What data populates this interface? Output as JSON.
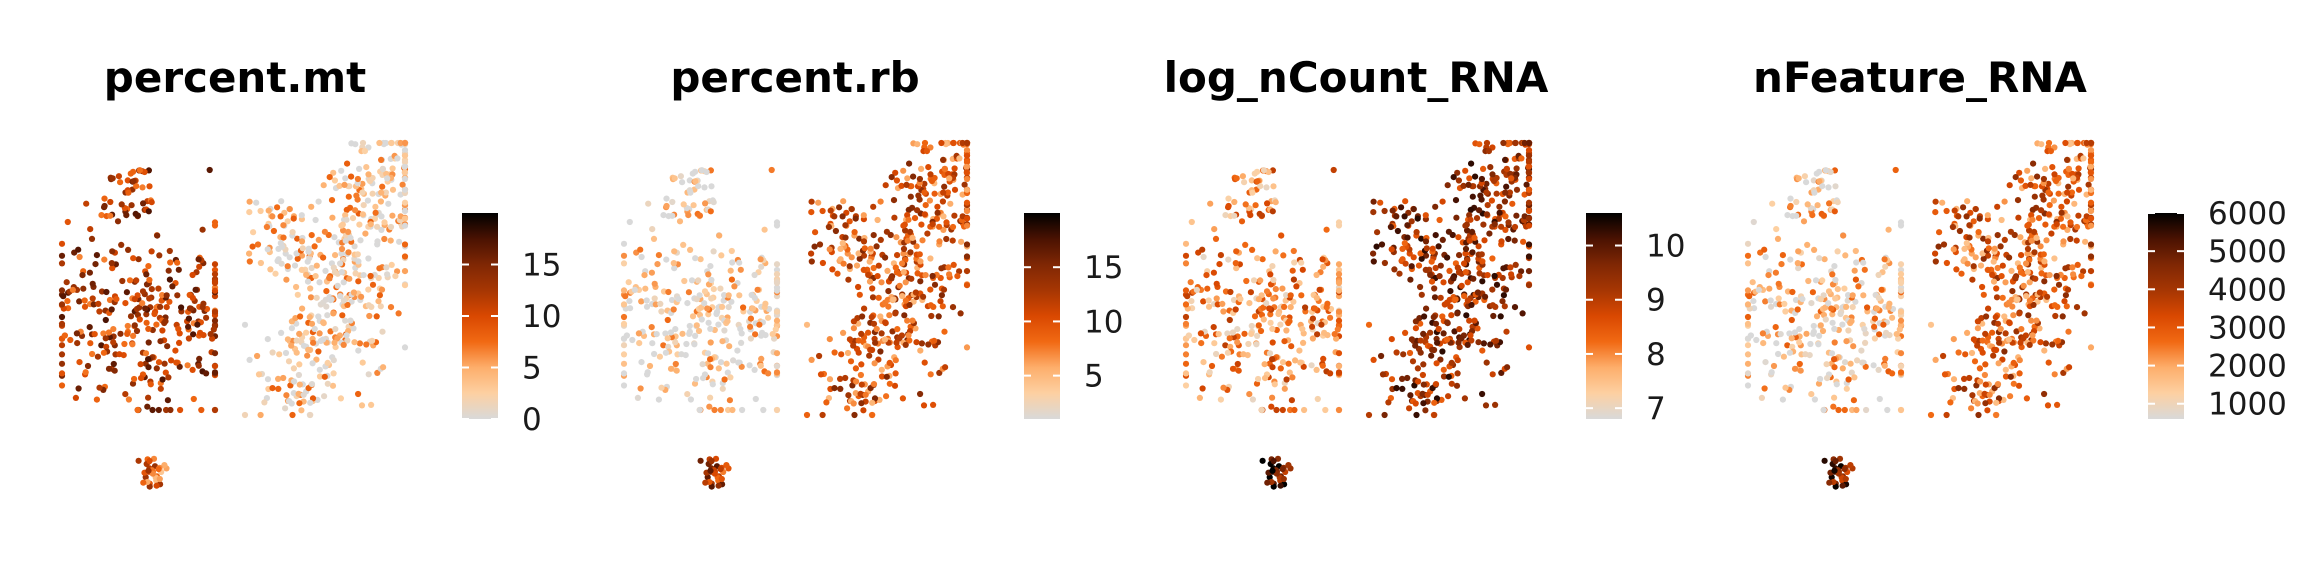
{
  "figure": {
    "type": "scatter",
    "description_note": ""
  },
  "chart_data": [
    {
      "type": "scatter",
      "title": "percent.mt",
      "xlabel": "",
      "ylabel": "",
      "color_scale": {
        "min": 0,
        "max": 20,
        "ticks": [
          0,
          5,
          10,
          15
        ],
        "tick_labels": [
          "0",
          "5",
          "10",
          "15"
        ]
      },
      "cluster_levels": {
        "left": 12,
        "right": 3,
        "small": 8
      },
      "grid": false,
      "legend": "right"
    },
    {
      "type": "scatter",
      "title": "percent.rb",
      "xlabel": "",
      "ylabel": "",
      "color_scale": {
        "min": 1,
        "max": 20,
        "ticks": [
          5,
          10,
          15
        ],
        "tick_labels": [
          "5",
          "10",
          "15"
        ]
      },
      "cluster_levels": {
        "left": 3,
        "right": 10,
        "small": 12
      },
      "grid": false,
      "legend": "right"
    },
    {
      "type": "scatter",
      "title": "log_nCount_RNA",
      "xlabel": "",
      "ylabel": "",
      "color_scale": {
        "min": 6.8,
        "max": 10.6,
        "ticks": [
          7,
          8,
          9,
          10
        ],
        "tick_labels": [
          "7",
          "8",
          "9",
          "10"
        ]
      },
      "cluster_levels": {
        "left": 8,
        "right": 9.3,
        "small": 9.8
      },
      "grid": false,
      "legend": "right"
    },
    {
      "type": "scatter",
      "title": "nFeature_RNA",
      "xlabel": "",
      "ylabel": "",
      "color_scale": {
        "min": 600,
        "max": 6000,
        "ticks": [
          1000,
          2000,
          3000,
          4000,
          5000,
          6000
        ],
        "tick_labels": [
          "1000",
          "2000",
          "3000",
          "4000",
          "5000",
          "6000"
        ]
      },
      "cluster_levels": {
        "left": 1500,
        "right": 3000,
        "small": 4500
      },
      "grid": false,
      "legend": "right"
    }
  ],
  "colormap": [
    "#d9d9d9",
    "#fdd0a2",
    "#fdae6b",
    "#f16913",
    "#d94801",
    "#a63603",
    "#7f2704",
    "#4a1202",
    "#000000"
  ]
}
